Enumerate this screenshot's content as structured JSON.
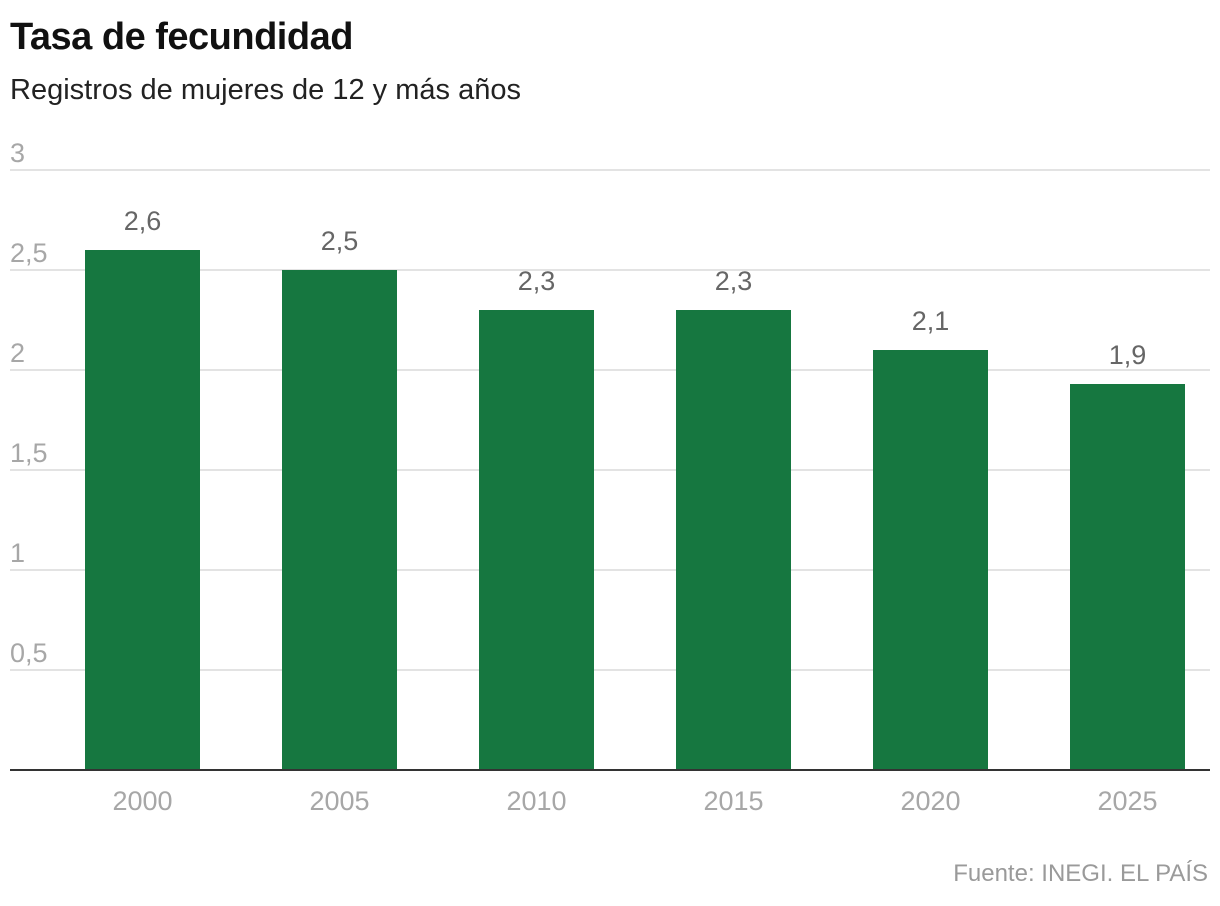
{
  "title": "Tasa de fecundidad",
  "subtitle": "Registros de mujeres de 12 y más años",
  "source": "Fuente: INEGI. EL PAÍS",
  "colors": {
    "bar": "#167740",
    "grid": "#e3e3e3",
    "axis": "#333333",
    "tick_text": "#a7a7a7",
    "value_label": "#666666"
  },
  "chart_data": {
    "type": "bar",
    "categories": [
      "2000",
      "2005",
      "2010",
      "2015",
      "2020",
      "2025"
    ],
    "values": [
      2.6,
      2.5,
      2.3,
      2.3,
      2.1,
      1.93
    ],
    "value_labels": [
      "2,6",
      "2,5",
      "2,3",
      "2,3",
      "2,1",
      "1,9"
    ],
    "y_ticks": [
      0.5,
      1,
      1.5,
      2,
      2.5,
      3
    ],
    "y_tick_labels": [
      "0,5",
      "1",
      "1,5",
      "2",
      "2,5",
      "3"
    ],
    "ylim": [
      0,
      3
    ],
    "grid": true
  }
}
